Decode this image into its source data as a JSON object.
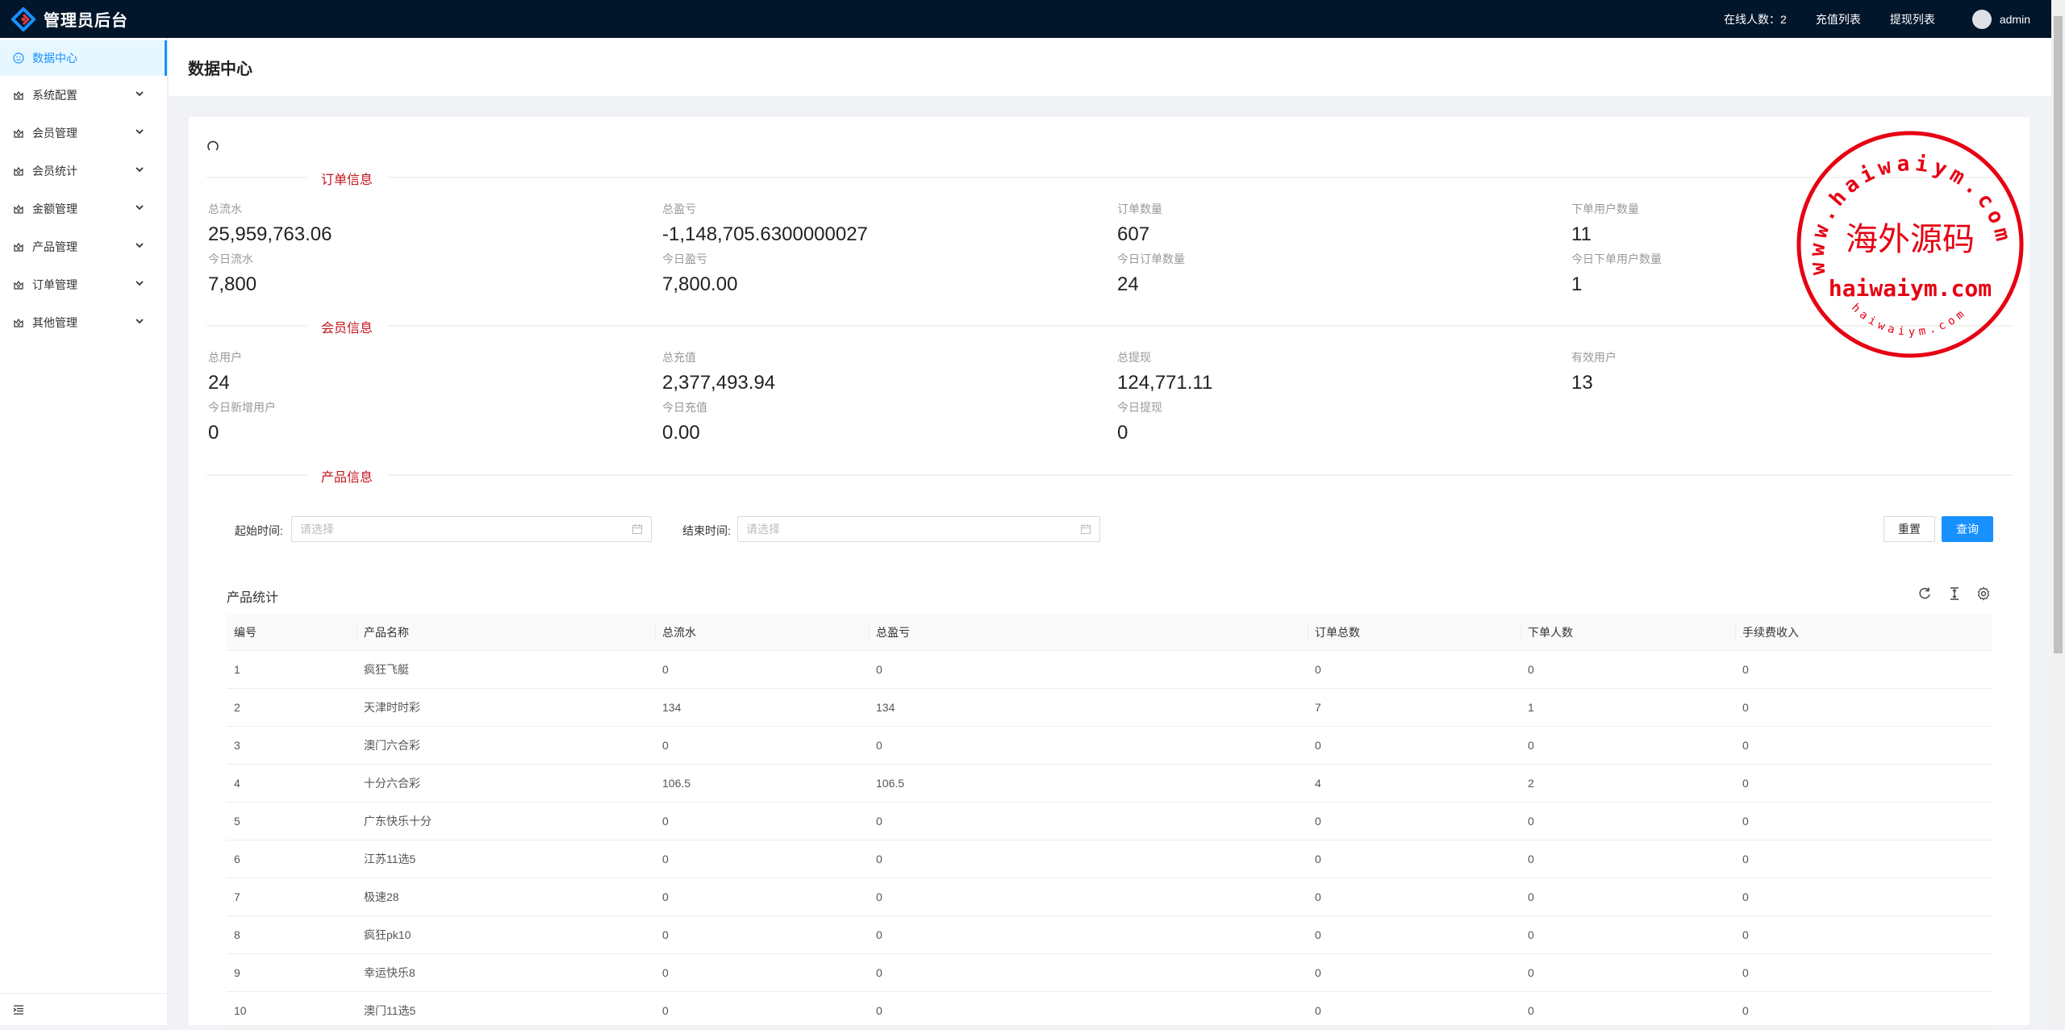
{
  "header": {
    "title": "管理员后台",
    "online": "在线人数：2",
    "recharge_list": "充值列表",
    "withdraw_list": "提现列表",
    "username": "admin"
  },
  "sidebar": {
    "items": [
      {
        "label": "数据中心",
        "icon": "dashboard-icon",
        "active": true
      },
      {
        "label": "系统配置",
        "icon": "crown-icon"
      },
      {
        "label": "会员管理",
        "icon": "crown-icon"
      },
      {
        "label": "会员统计",
        "icon": "crown-icon"
      },
      {
        "label": "金额管理",
        "icon": "crown-icon"
      },
      {
        "label": "产品管理",
        "icon": "crown-icon"
      },
      {
        "label": "订单管理",
        "icon": "crown-icon"
      },
      {
        "label": "其他管理",
        "icon": "crown-icon"
      }
    ]
  },
  "page": {
    "title": "数据中心"
  },
  "sections": {
    "order": "订单信息",
    "member": "会员信息",
    "product": "产品信息"
  },
  "order_stats": [
    {
      "label": "总流水",
      "value": "25,959,763.06",
      "today_label": "今日流水",
      "today_value": "7,800"
    },
    {
      "label": "总盈亏",
      "value": "-1,148,705.6300000027",
      "today_label": "今日盈亏",
      "today_value": "7,800.00"
    },
    {
      "label": "订单数量",
      "value": "607",
      "today_label": "今日订单数量",
      "today_value": "24"
    },
    {
      "label": "下单用户数量",
      "value": "11",
      "today_label": "今日下单用户数量",
      "today_value": "1"
    }
  ],
  "member_stats": [
    {
      "label": "总用户",
      "value": "24",
      "today_label": "今日新增用户",
      "today_value": "0"
    },
    {
      "label": "总充值",
      "value": "2,377,493.94",
      "today_label": "今日充值",
      "today_value": "0.00"
    },
    {
      "label": "总提现",
      "value": "124,771.11",
      "today_label": "今日提现",
      "today_value": "0"
    },
    {
      "label": "有效用户",
      "value": "13"
    }
  ],
  "filter": {
    "start_label": "起始时间:",
    "end_label": "结束时间:",
    "placeholder": "请选择",
    "reset": "重置",
    "query": "查询"
  },
  "table": {
    "title": "产品统计",
    "columns": [
      "编号",
      "产品名称",
      "总流水",
      "总盈亏",
      "订单总数",
      "下单人数",
      "手续费收入"
    ],
    "rows": [
      [
        "1",
        "疯狂飞艇",
        "0",
        "0",
        "0",
        "0",
        "0"
      ],
      [
        "2",
        "天津时时彩",
        "134",
        "134",
        "7",
        "1",
        "0"
      ],
      [
        "3",
        "澳门六合彩",
        "0",
        "0",
        "0",
        "0",
        "0"
      ],
      [
        "4",
        "十分六合彩",
        "106.5",
        "106.5",
        "4",
        "2",
        "0"
      ],
      [
        "5",
        "广东快乐十分",
        "0",
        "0",
        "0",
        "0",
        "0"
      ],
      [
        "6",
        "江苏11选5",
        "0",
        "0",
        "0",
        "0",
        "0"
      ],
      [
        "7",
        "极速28",
        "0",
        "0",
        "0",
        "0",
        "0"
      ],
      [
        "8",
        "疯狂pk10",
        "0",
        "0",
        "0",
        "0",
        "0"
      ],
      [
        "9",
        "幸运快乐8",
        "0",
        "0",
        "0",
        "0",
        "0"
      ],
      [
        "10",
        "澳门11选5",
        "0",
        "0",
        "0",
        "0",
        "0"
      ]
    ]
  },
  "watermark": {
    "arc_top": "www.haiwaiym.com",
    "center": "海外源码",
    "line": "haiwaiym.com",
    "arc_bottom": "haiwaiym.com",
    "color": "#e60012"
  },
  "colors": {
    "header_bg": "#01152b",
    "accent": "#1890ff",
    "section_title": "#c0141c"
  }
}
